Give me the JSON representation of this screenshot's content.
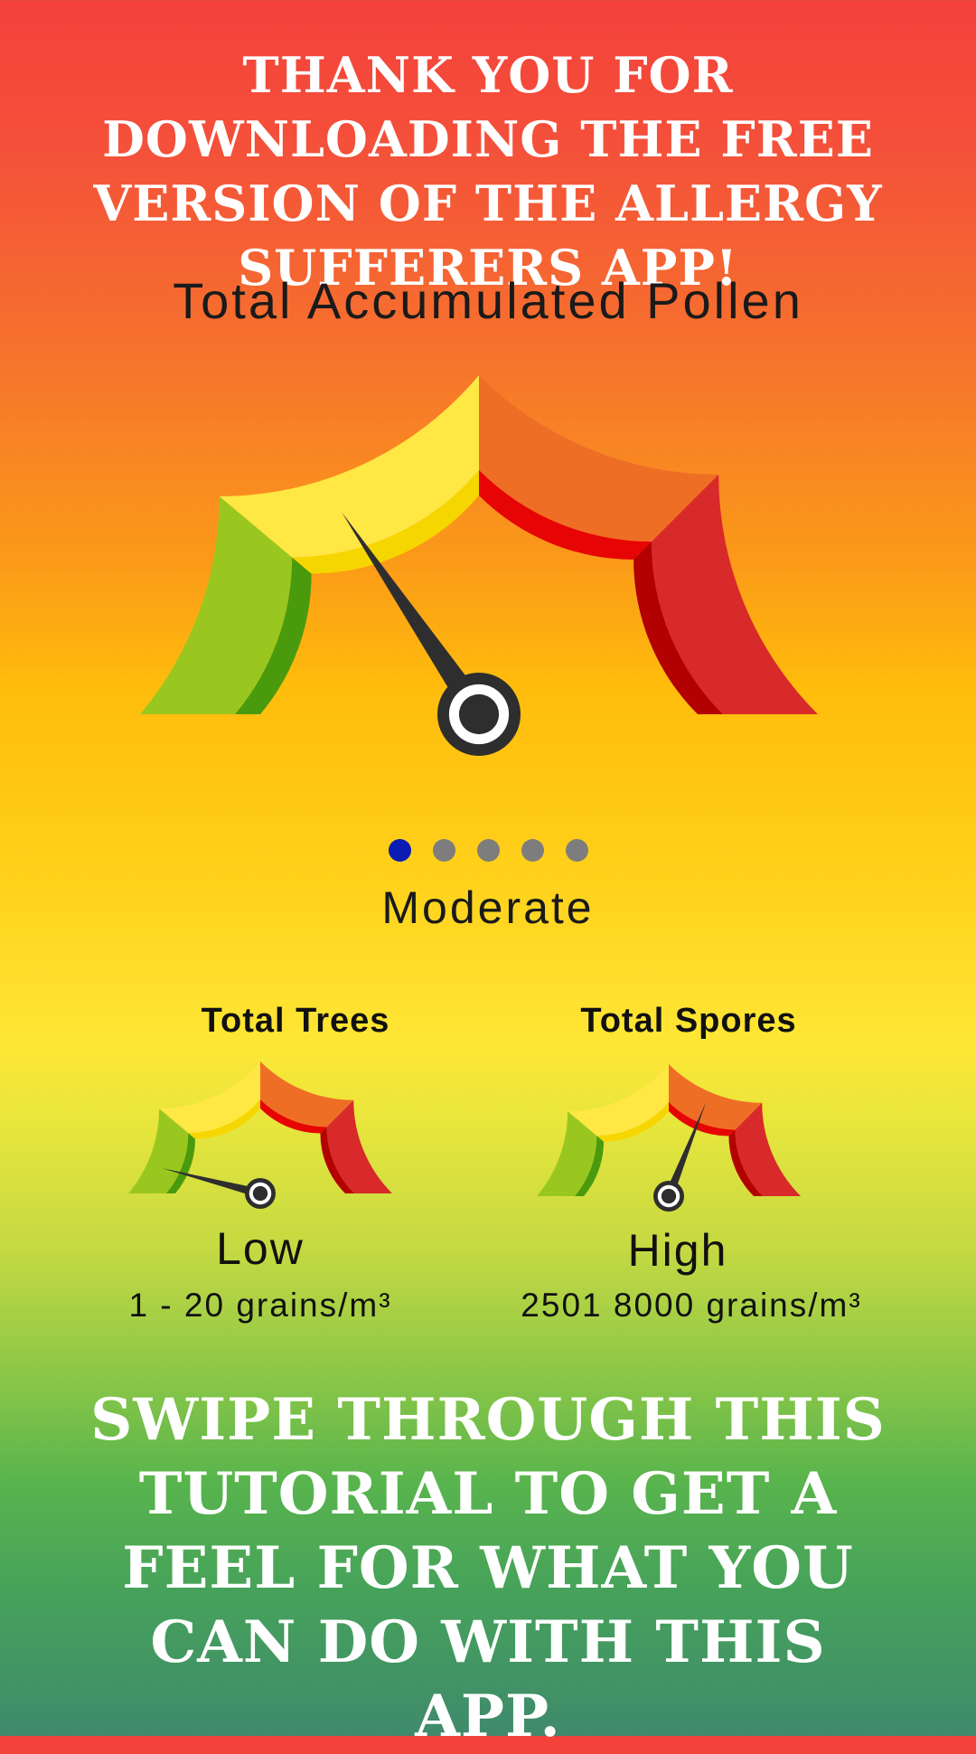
{
  "intro": {
    "title": "THANK YOU FOR DOWNLOADING THE FREE VERSION OF THE ALLERGY SUFFERERS APP!"
  },
  "main_gauge": {
    "title": "Total Accumulated Pollen",
    "level": "Moderate",
    "level_index": 2,
    "level_count": 5,
    "needle_fraction": 0.31
  },
  "pager": {
    "page_count": 5,
    "active_index": 0,
    "active_color": "#0b1cb4",
    "inactive_color": "#7d7d7d"
  },
  "trees": {
    "title": "Total Trees",
    "level": "Low",
    "range": "1 - 20 grains/m³",
    "needle_fraction": 0.08
  },
  "spores": {
    "title": "Total Spores",
    "level": "High",
    "range": "2501 8000 grains/m³",
    "needle_fraction": 0.62
  },
  "outro": {
    "title": "SWIPE THROUGH THIS TUTORIAL TO GET A FEEL FOR WHAT YOU CAN DO WITH THIS APP."
  },
  "colors": {
    "green": "#9ac71f",
    "green_inner": "#4a9a0e",
    "yellow": "#ffe744",
    "yellow_inner": "#f6d600",
    "orange": "#ef6e26",
    "orange_inner": "#e60404",
    "red": "#d82a2a",
    "red_inner": "#b30000",
    "needle": "#2e2e2e"
  }
}
